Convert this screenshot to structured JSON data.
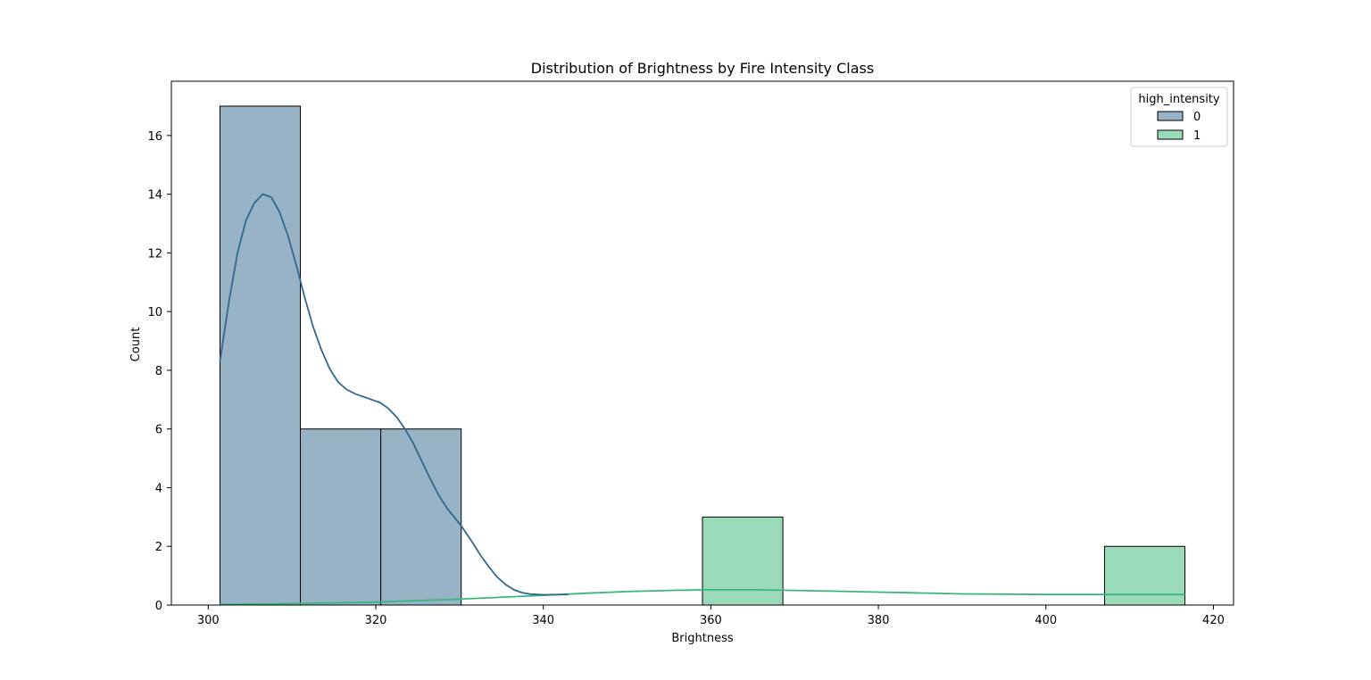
{
  "chart_data": {
    "type": "bar",
    "title": "Distribution of Brightness by Fire Intensity Class",
    "xlabel": "Brightness",
    "ylabel": "Count",
    "xlim": [
      295.6,
      422.4
    ],
    "ylim": [
      0,
      17.85
    ],
    "xticks": [
      300,
      320,
      340,
      360,
      380,
      400,
      420
    ],
    "yticks": [
      0,
      2,
      4,
      6,
      8,
      10,
      12,
      14,
      16
    ],
    "grid": false,
    "legend": {
      "title": "high_intensity",
      "position": "top-right",
      "entries": [
        "0",
        "1"
      ]
    },
    "series": [
      {
        "name": "0",
        "color": "#98b3c6",
        "line_color": "#31688e",
        "bins": [
          {
            "x0": 301.4,
            "x1": 311.0,
            "count": 17
          },
          {
            "x0": 311.0,
            "x1": 320.6,
            "count": 6
          },
          {
            "x0": 320.6,
            "x1": 330.2,
            "count": 6
          }
        ],
        "kde": [
          [
            301.4,
            8.3
          ],
          [
            302.5,
            10.4
          ],
          [
            303.5,
            12.0
          ],
          [
            304.5,
            13.1
          ],
          [
            305.5,
            13.7
          ],
          [
            306.5,
            14.0
          ],
          [
            307.5,
            13.9
          ],
          [
            308.5,
            13.4
          ],
          [
            309.5,
            12.6
          ],
          [
            310.5,
            11.6
          ],
          [
            311.5,
            10.5
          ],
          [
            312.5,
            9.5
          ],
          [
            313.5,
            8.7
          ],
          [
            314.5,
            8.05
          ],
          [
            315.5,
            7.6
          ],
          [
            316.5,
            7.35
          ],
          [
            317.5,
            7.2
          ],
          [
            318.5,
            7.1
          ],
          [
            319.5,
            7.0
          ],
          [
            320.5,
            6.9
          ],
          [
            321.5,
            6.7
          ],
          [
            322.5,
            6.4
          ],
          [
            323.5,
            6.0
          ],
          [
            324.5,
            5.5
          ],
          [
            325.5,
            4.9
          ],
          [
            326.5,
            4.3
          ],
          [
            327.5,
            3.75
          ],
          [
            328.5,
            3.3
          ],
          [
            329.5,
            2.95
          ],
          [
            330.2,
            2.7
          ],
          [
            331.5,
            2.15
          ],
          [
            332.5,
            1.7
          ],
          [
            333.5,
            1.3
          ],
          [
            334.5,
            0.95
          ],
          [
            335.5,
            0.7
          ],
          [
            336.5,
            0.52
          ],
          [
            337.5,
            0.42
          ],
          [
            338.5,
            0.37
          ],
          [
            340.0,
            0.35
          ],
          [
            343.0,
            0.36
          ]
        ]
      },
      {
        "name": "1",
        "color": "#9adab9",
        "line_color": "#3bb57c",
        "bins": [
          {
            "x0": 359.0,
            "x1": 368.6,
            "count": 3
          },
          {
            "x0": 407.0,
            "x1": 416.6,
            "count": 2
          }
        ],
        "kde": [
          [
            301.4,
            0.02
          ],
          [
            310.0,
            0.05
          ],
          [
            320.0,
            0.1
          ],
          [
            330.0,
            0.2
          ],
          [
            340.0,
            0.33
          ],
          [
            345.0,
            0.4
          ],
          [
            350.0,
            0.46
          ],
          [
            355.0,
            0.5
          ],
          [
            360.0,
            0.52
          ],
          [
            365.0,
            0.52
          ],
          [
            370.0,
            0.5
          ],
          [
            375.0,
            0.47
          ],
          [
            380.0,
            0.44
          ],
          [
            385.0,
            0.41
          ],
          [
            390.0,
            0.38
          ],
          [
            395.0,
            0.37
          ],
          [
            400.0,
            0.36
          ],
          [
            405.0,
            0.36
          ],
          [
            410.0,
            0.36
          ],
          [
            416.6,
            0.36
          ]
        ]
      }
    ]
  }
}
